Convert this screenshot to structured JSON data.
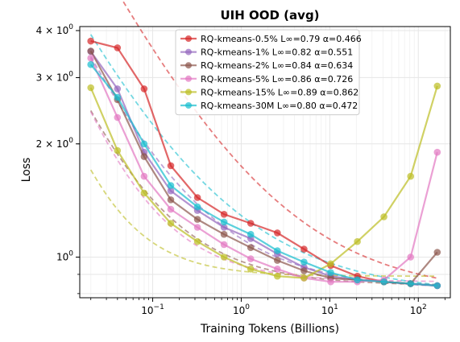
{
  "chart_data": {
    "type": "line",
    "title": "UIH OOD (avg)",
    "xlabel": "Training Tokens (Billions)",
    "ylabel": "Loss",
    "xscale": "log",
    "yscale": "log",
    "xlim": [
      0.015,
      230
    ],
    "ylim": [
      0.78,
      4.1
    ],
    "grid": true,
    "legend_position": "top-right",
    "x_ticks": [
      {
        "value": 0.1,
        "base": "10",
        "exp": "−1"
      },
      {
        "value": 1,
        "base": "10",
        "exp": "0"
      },
      {
        "value": 10,
        "base": "10",
        "exp": "1"
      },
      {
        "value": 100,
        "base": "10",
        "exp": "2"
      }
    ],
    "y_ticks": [
      {
        "value": 1,
        "base": "10",
        "exp": "0"
      },
      {
        "value": 2,
        "base": "2 × 10",
        "exp": "0"
      },
      {
        "value": 3,
        "base": "3 × 10",
        "exp": "0"
      },
      {
        "value": 4,
        "base": "4 × 10",
        "exp": "0"
      }
    ],
    "x": [
      0.02,
      0.04,
      0.08,
      0.16,
      0.32,
      0.64,
      1.28,
      2.56,
      5.12,
      10.24,
      20.48,
      40.96,
      81.92,
      163.84
    ],
    "series": [
      {
        "name": "RQ-kmeans-0.5% L∞=0.79 α=0.466",
        "color": "#d62728",
        "values": [
          3.75,
          3.6,
          2.8,
          1.75,
          1.44,
          1.3,
          1.23,
          1.16,
          1.05,
          0.95,
          0.89,
          0.86,
          0.85,
          0.84
        ],
        "fit": {
          "linf": 0.79,
          "a": 0.955,
          "alpha": 0.466
        }
      },
      {
        "name": "RQ-kmeans-1% L∞=0.82 α=0.551",
        "color": "#9467bd",
        "values": [
          3.52,
          2.8,
          1.9,
          1.5,
          1.33,
          1.2,
          1.12,
          1.02,
          0.94,
          0.89,
          0.87,
          0.86,
          0.85,
          0.84
        ],
        "fit": {
          "linf": 0.82,
          "a": 0.3,
          "alpha": 0.551
        }
      },
      {
        "name": "RQ-kmeans-2% L∞=0.84 α=0.634",
        "color": "#8c564b",
        "values": [
          3.53,
          2.62,
          1.85,
          1.42,
          1.26,
          1.15,
          1.06,
          0.98,
          0.92,
          0.88,
          0.87,
          0.86,
          0.85,
          1.03
        ],
        "fit": {
          "linf": 0.84,
          "a": 0.135,
          "alpha": 0.634
        }
      },
      {
        "name": "RQ-kmeans-5% L∞=0.86 α=0.726",
        "color": "#e377c2",
        "values": [
          3.38,
          2.35,
          1.64,
          1.34,
          1.2,
          1.08,
          0.99,
          0.93,
          0.88,
          0.86,
          0.86,
          0.87,
          1.0,
          1.9
        ],
        "fit": {
          "linf": 0.86,
          "a": 0.092,
          "alpha": 0.726
        }
      },
      {
        "name": "RQ-kmeans-15% L∞=0.89 α=0.862",
        "color": "#bcbd22",
        "values": [
          2.82,
          1.92,
          1.48,
          1.23,
          1.1,
          1.0,
          0.93,
          0.89,
          0.88,
          0.96,
          1.1,
          1.28,
          1.64,
          2.85
        ],
        "fit": {
          "linf": 0.89,
          "a": 0.028,
          "alpha": 0.862
        }
      },
      {
        "name": "RQ-kmeans-30M L∞=0.80 α=0.472",
        "color": "#17becf",
        "values": [
          3.25,
          2.66,
          2.0,
          1.55,
          1.36,
          1.24,
          1.15,
          1.04,
          0.97,
          0.91,
          0.87,
          0.86,
          0.85,
          0.84
        ],
        "fit": {
          "linf": 0.8,
          "a": 0.49,
          "alpha": 0.472
        }
      }
    ]
  }
}
